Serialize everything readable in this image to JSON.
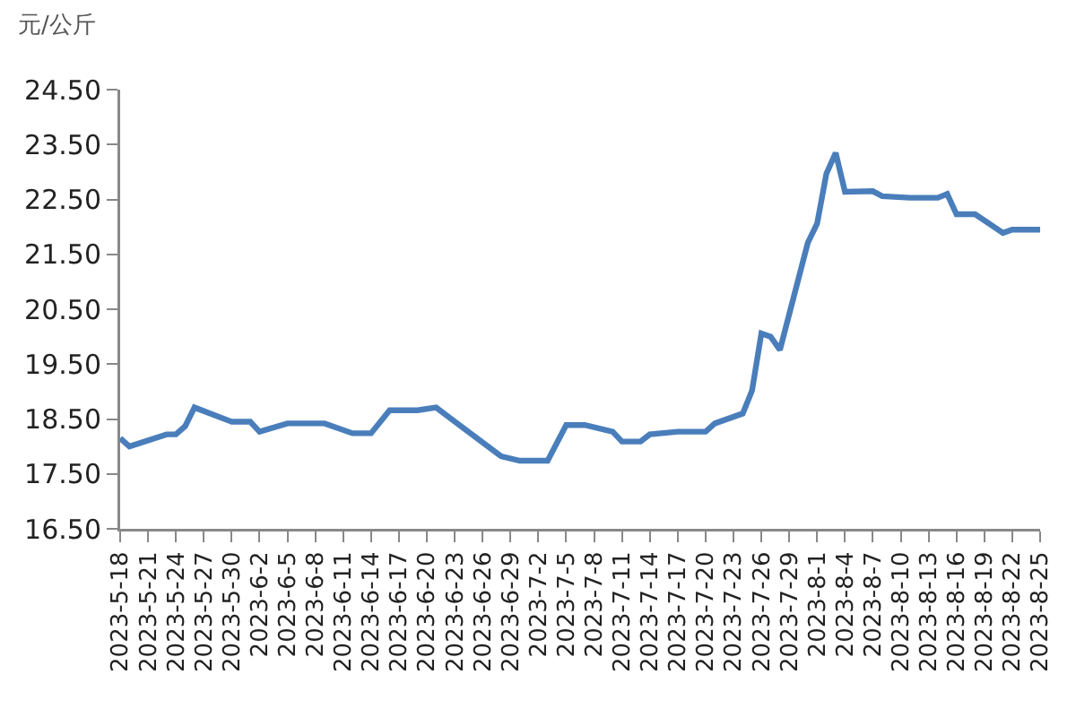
{
  "chart_data": {
    "type": "line",
    "ylabel": "元/公斤",
    "x": [
      "2023-05-18",
      "2023-05-19",
      "2023-05-23",
      "2023-05-24",
      "2023-05-25",
      "2023-05-26",
      "2023-05-30",
      "2023-06-01",
      "2023-06-02",
      "2023-06-05",
      "2023-06-09",
      "2023-06-12",
      "2023-06-14",
      "2023-06-16",
      "2023-06-19",
      "2023-06-21",
      "2023-06-28",
      "2023-06-30",
      "2023-07-03",
      "2023-07-05",
      "2023-07-07",
      "2023-07-10",
      "2023-07-11",
      "2023-07-13",
      "2023-07-14",
      "2023-07-17",
      "2023-07-20",
      "2023-07-21",
      "2023-07-24",
      "2023-07-25",
      "2023-07-26",
      "2023-07-27",
      "2023-07-28",
      "2023-07-31",
      "2023-08-01",
      "2023-08-02",
      "2023-08-03",
      "2023-08-04",
      "2023-08-07",
      "2023-08-08",
      "2023-08-11",
      "2023-08-14",
      "2023-08-15",
      "2023-08-16",
      "2023-08-18",
      "2023-08-21",
      "2023-08-22",
      "2023-08-25"
    ],
    "series": [
      {
        "color": "#4a7ebb",
        "values": [
          18.15,
          18.0,
          18.22,
          18.22,
          18.37,
          18.71,
          18.45,
          18.45,
          18.27,
          18.42,
          18.42,
          18.24,
          18.24,
          18.66,
          18.66,
          18.71,
          17.82,
          17.74,
          17.74,
          18.39,
          18.39,
          18.27,
          18.09,
          18.09,
          18.22,
          18.27,
          18.27,
          18.42,
          18.6,
          19.02,
          20.06,
          20.0,
          19.76,
          21.71,
          22.06,
          22.97,
          23.35,
          22.64,
          22.65,
          22.56,
          22.53,
          22.53,
          22.6,
          22.23,
          22.23,
          21.89,
          21.95,
          21.95
        ]
      }
    ],
    "xlim": [
      "2023-05-18",
      "2023-08-25"
    ],
    "xticks": [
      {
        "value": "2023-05-18",
        "label": "2023-5-18"
      },
      {
        "value": "2023-05-21",
        "label": "2023-5-21"
      },
      {
        "value": "2023-05-24",
        "label": "2023-5-24"
      },
      {
        "value": "2023-05-27",
        "label": "2023-5-27"
      },
      {
        "value": "2023-05-30",
        "label": "2023-5-30"
      },
      {
        "value": "2023-06-02",
        "label": "2023-6-2"
      },
      {
        "value": "2023-06-05",
        "label": "2023-6-5"
      },
      {
        "value": "2023-06-08",
        "label": "2023-6-8"
      },
      {
        "value": "2023-06-11",
        "label": "2023-6-11"
      },
      {
        "value": "2023-06-14",
        "label": "2023-6-14"
      },
      {
        "value": "2023-06-17",
        "label": "2023-6-17"
      },
      {
        "value": "2023-06-20",
        "label": "2023-6-20"
      },
      {
        "value": "2023-06-23",
        "label": "2023-6-23"
      },
      {
        "value": "2023-06-26",
        "label": "2023-6-26"
      },
      {
        "value": "2023-06-29",
        "label": "2023-6-29"
      },
      {
        "value": "2023-07-02",
        "label": "2023-7-2"
      },
      {
        "value": "2023-07-05",
        "label": "2023-7-5"
      },
      {
        "value": "2023-07-08",
        "label": "2023-7-8"
      },
      {
        "value": "2023-07-11",
        "label": "2023-7-11"
      },
      {
        "value": "2023-07-14",
        "label": "2023-7-14"
      },
      {
        "value": "2023-07-17",
        "label": "2023-7-17"
      },
      {
        "value": "2023-07-20",
        "label": "2023-7-20"
      },
      {
        "value": "2023-07-23",
        "label": "2023-7-23"
      },
      {
        "value": "2023-07-26",
        "label": "2023-7-26"
      },
      {
        "value": "2023-07-29",
        "label": "2023-7-29"
      },
      {
        "value": "2023-08-01",
        "label": "2023-8-1"
      },
      {
        "value": "2023-08-04",
        "label": "2023-8-4"
      },
      {
        "value": "2023-08-07",
        "label": "2023-8-7"
      },
      {
        "value": "2023-08-10",
        "label": "2023-8-10"
      },
      {
        "value": "2023-08-13",
        "label": "2023-8-13"
      },
      {
        "value": "2023-08-16",
        "label": "2023-8-16"
      },
      {
        "value": "2023-08-19",
        "label": "2023-8-19"
      },
      {
        "value": "2023-08-22",
        "label": "2023-8-22"
      },
      {
        "value": "2023-08-25",
        "label": "2023-8-25"
      }
    ],
    "ylim": [
      16.5,
      24.5
    ],
    "yticks": [
      {
        "value": 16.5,
        "label": "16.50"
      },
      {
        "value": 17.5,
        "label": "17.50"
      },
      {
        "value": 18.5,
        "label": "18.50"
      },
      {
        "value": 19.5,
        "label": "19.50"
      },
      {
        "value": 20.5,
        "label": "20.50"
      },
      {
        "value": 21.5,
        "label": "21.50"
      },
      {
        "value": 22.5,
        "label": "22.50"
      },
      {
        "value": 23.5,
        "label": "23.50"
      },
      {
        "value": 24.5,
        "label": "24.50"
      }
    ],
    "grid": false,
    "marker": "none",
    "line_style": "solid"
  }
}
